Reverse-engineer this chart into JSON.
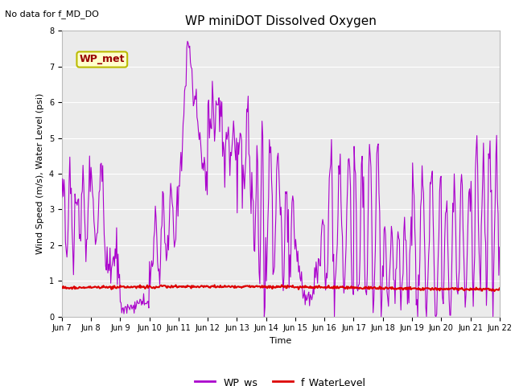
{
  "title": "WP miniDOT Dissolved Oxygen",
  "top_left_text": "No data for f_MD_DO",
  "ylabel": "Wind Speed (m/s), Water Level (psi)",
  "xlabel": "Time",
  "ylim": [
    0.0,
    8.0
  ],
  "yticks": [
    0.0,
    1.0,
    2.0,
    3.0,
    4.0,
    5.0,
    6.0,
    7.0,
    8.0
  ],
  "xtick_labels": [
    "Jun 7",
    "Jun 8",
    "Jun 9",
    "Jun 10",
    "Jun 11",
    "Jun 12",
    "Jun 13",
    "Jun 14",
    "Jun 15",
    "Jun 16",
    "Jun 17",
    "Jun 18",
    "Jun 19",
    "Jun 20",
    "Jun 21",
    "Jun 22"
  ],
  "wp_ws_color": "#aa00cc",
  "f_wl_color": "#dd0000",
  "background_color": "#ebebeb",
  "legend_labels": [
    "WP_ws",
    "f_WaterLevel"
  ],
  "annotation_box_text": "WP_met",
  "annotation_box_facecolor": "#ffffcc",
  "annotation_box_edgecolor": "#bbbb00",
  "annotation_text_color": "#990000",
  "title_fontsize": 11,
  "tick_fontsize": 7,
  "ylabel_fontsize": 8,
  "xlabel_fontsize": 8
}
